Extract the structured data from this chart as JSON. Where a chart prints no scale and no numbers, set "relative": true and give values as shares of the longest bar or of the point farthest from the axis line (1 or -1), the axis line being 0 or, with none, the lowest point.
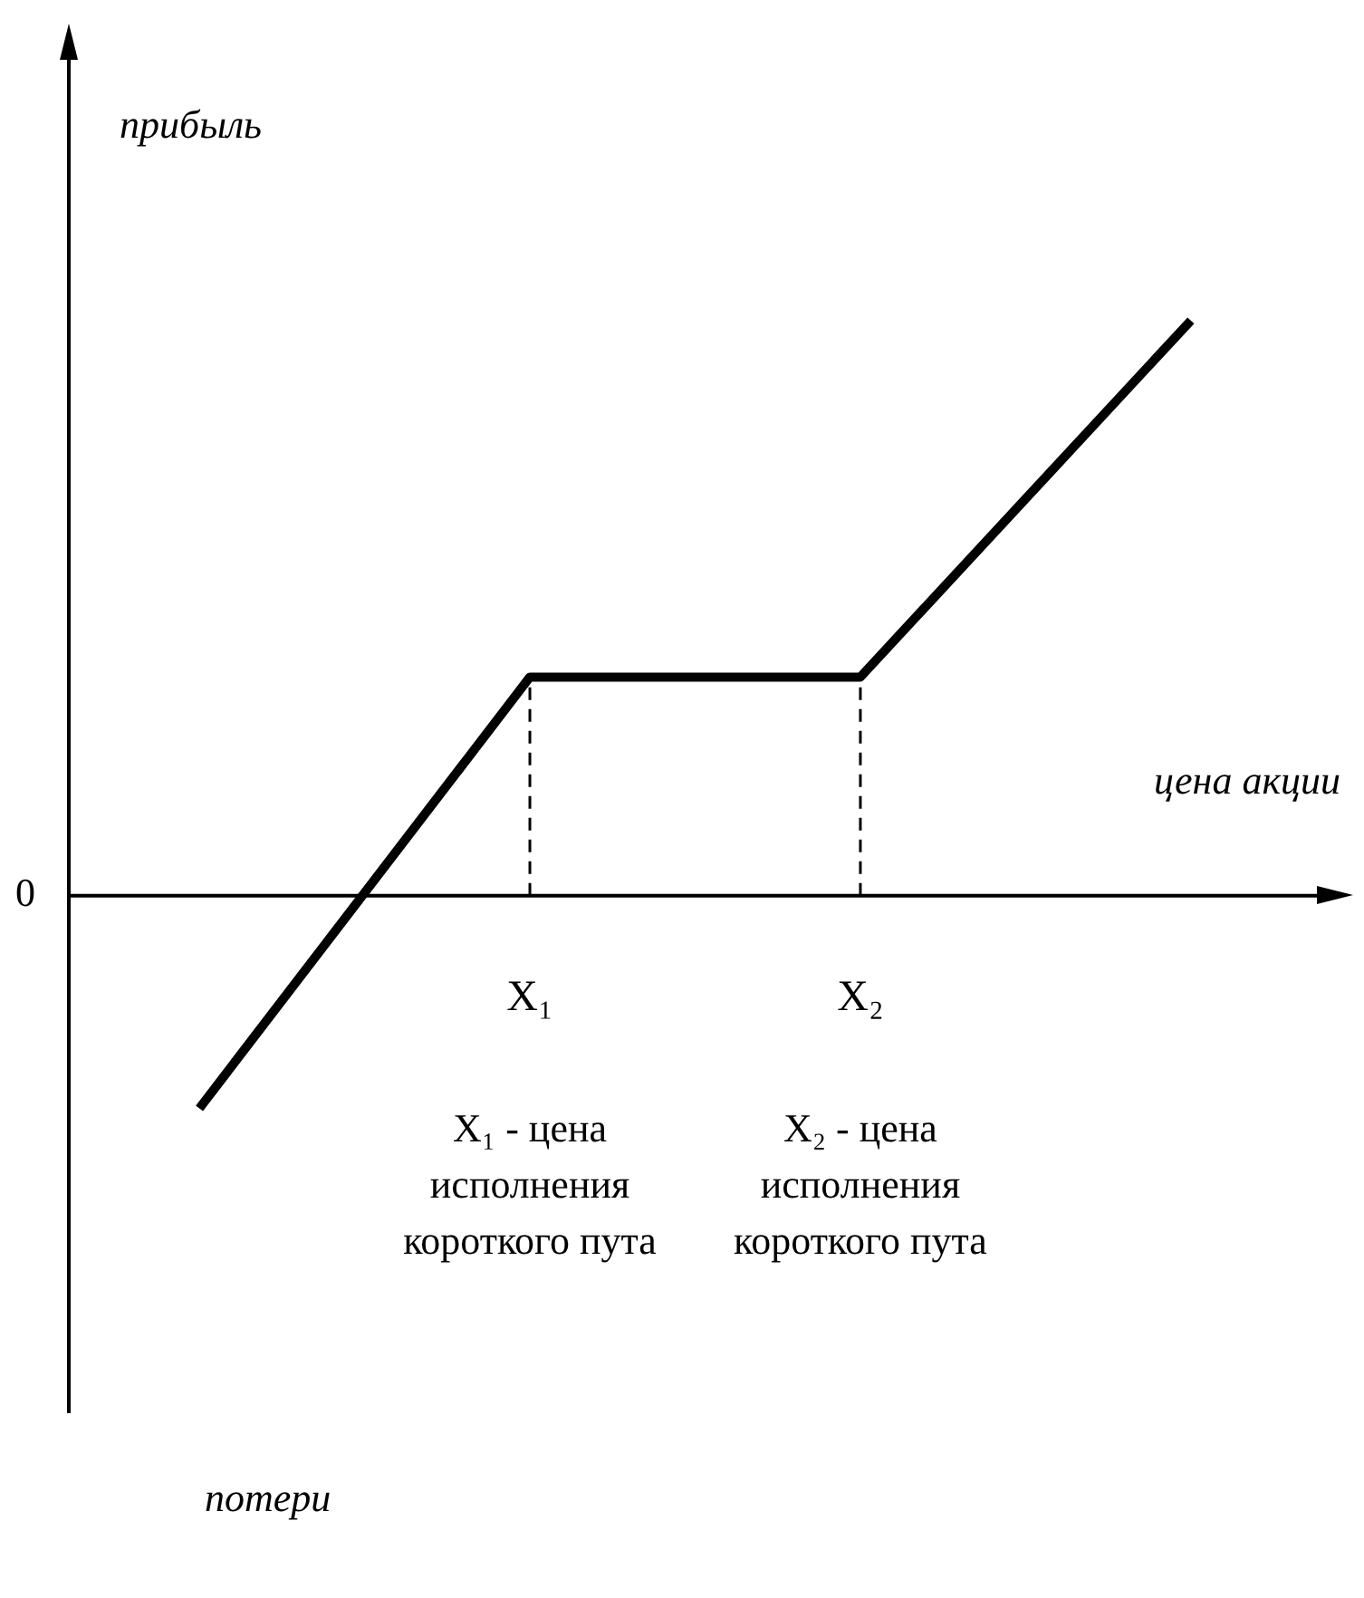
{
  "chart_data": {
    "type": "line",
    "relative": true,
    "ylabel": "прибыль",
    "xlabel": "цена акции",
    "categories": [
      null,
      "X₁",
      "X₂",
      null
    ],
    "series": [
      {
        "color": "#000000",
        "values": [
          -0.37,
          0.38,
          0.38,
          1
        ]
      }
    ],
    "ref_lines": [
      {
        "axis": "x",
        "value": "X₁",
        "line_style": "dashed"
      },
      {
        "axis": "x",
        "value": "X₂",
        "line_style": "dashed"
      }
    ],
    "annotations": [
      "0",
      "X₁ - цена исполнения короткого пута",
      "X₂ - цена исполнения короткого пута",
      "потери"
    ],
    "tick_labels": "x",
    "marker": "none",
    "line_style": "solid"
  }
}
